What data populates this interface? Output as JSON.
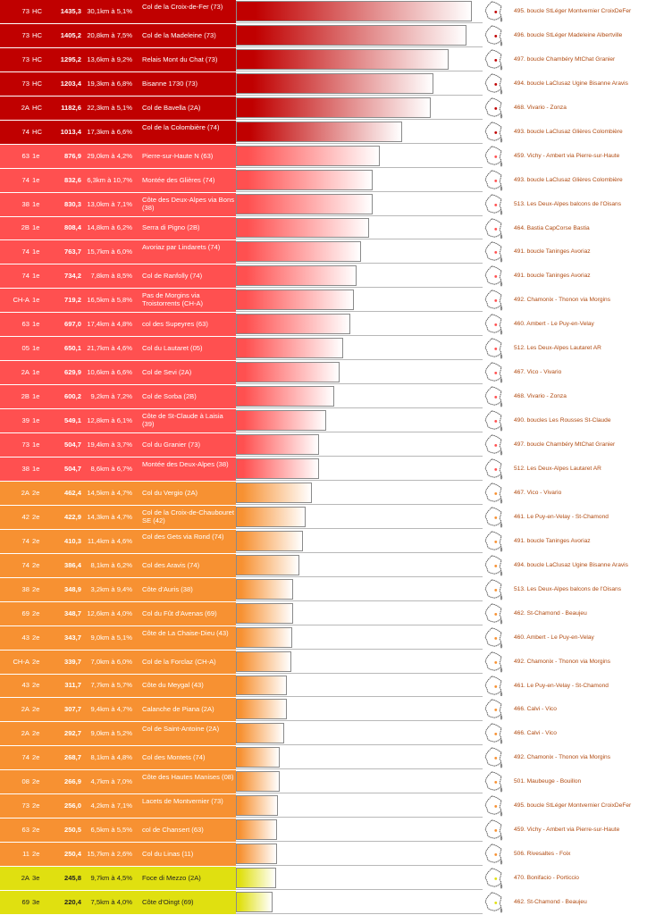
{
  "chart_data": {
    "type": "bar",
    "colors": {
      "HC": "#c00000",
      "1e": "#ff5050",
      "2e": "#f79132",
      "3e": "#e0e010"
    },
    "rows": [
      {
        "dept": "73",
        "cat": "HC",
        "score": 1435.3,
        "score_text": "1435,3",
        "dist": "30,1km",
        "grade": "5,1%",
        "climb": "Col de la Croix-de-Fer (73)",
        "route": "495. boucle StLéger Montvernier CroixDeFer"
      },
      {
        "dept": "73",
        "cat": "HC",
        "score": 1405.2,
        "score_text": "1405,2",
        "dist": "20,8km",
        "grade": "7,5%",
        "climb": "Col de la Madeleine (73)",
        "route": "496. boucle StLéger Madeleine Albertville"
      },
      {
        "dept": "73",
        "cat": "HC",
        "score": 1295.2,
        "score_text": "1295,2",
        "dist": "13,6km",
        "grade": "9,2%",
        "climb": "Relais Mont du Chat (73)",
        "route": "497. boucle Chambéry MtChat Granier"
      },
      {
        "dept": "73",
        "cat": "HC",
        "score": 1203.4,
        "score_text": "1203,4",
        "dist": "19,3km",
        "grade": "6,8%",
        "climb": "Bisanne 1730 (73)",
        "route": "494. boucle LaClusaz Ugine Bisanne Aravis"
      },
      {
        "dept": "2A",
        "cat": "HC",
        "score": 1182.6,
        "score_text": "1182,6",
        "dist": "22,3km",
        "grade": "5,1%",
        "climb": "Col de Bavella (2A)",
        "route": "468. Vivario - Zonza"
      },
      {
        "dept": "74",
        "cat": "HC",
        "score": 1013.4,
        "score_text": "1013,4",
        "dist": "17,3km",
        "grade": "6,6%",
        "climb": "Col de la Colombière (74)",
        "route": "493. boucle LaClusaz Glières Colombière"
      },
      {
        "dept": "63",
        "cat": "1e",
        "score": 876.9,
        "score_text": "876,9",
        "dist": "29,0km",
        "grade": "4,2%",
        "climb": "Pierre-sur-Haute N (63)",
        "route": "459. Vichy - Ambert via Pierre-sur-Haute"
      },
      {
        "dept": "74",
        "cat": "1e",
        "score": 832.6,
        "score_text": "832,6",
        "dist": "6,3km",
        "grade": "10,7%",
        "climb": "Montée des Glières (74)",
        "route": "493. boucle LaClusaz Glières Colombière"
      },
      {
        "dept": "38",
        "cat": "1e",
        "score": 830.3,
        "score_text": "830,3",
        "dist": "13,0km",
        "grade": "7,1%",
        "climb": "Côte des Deux-Alpes via Bons (38)",
        "route": "513. Les Deux-Alpes balcons de l'Oisans"
      },
      {
        "dept": "2B",
        "cat": "1e",
        "score": 808.4,
        "score_text": "808,4",
        "dist": "14,8km",
        "grade": "6,2%",
        "climb": "Serra di Pigno (2B)",
        "route": "464. Bastia CapCorse Bastia"
      },
      {
        "dept": "74",
        "cat": "1e",
        "score": 763.7,
        "score_text": "763,7",
        "dist": "15,7km",
        "grade": "6,0%",
        "climb": "Avoriaz par Lindarets (74)",
        "route": "491. boucle Taninges Avoriaz"
      },
      {
        "dept": "74",
        "cat": "1e",
        "score": 734.2,
        "score_text": "734,2",
        "dist": "7,8km",
        "grade": "8,5%",
        "climb": "Col de Ranfolly (74)",
        "route": "491. boucle Taninges Avoriaz"
      },
      {
        "dept": "CH-A",
        "cat": "1e",
        "score": 719.2,
        "score_text": "719,2",
        "dist": "16,5km",
        "grade": "5,8%",
        "climb": "Pas de Morgins via Troistorrents (CH-A)",
        "route": "492. Chamonix - Thonon via Morgins"
      },
      {
        "dept": "63",
        "cat": "1e",
        "score": 697.0,
        "score_text": "697,0",
        "dist": "17,4km",
        "grade": "4,8%",
        "climb": "col des Supeyres (63)",
        "route": "460. Ambert - Le Puy-en-Velay"
      },
      {
        "dept": "05",
        "cat": "1e",
        "score": 650.1,
        "score_text": "650,1",
        "dist": "21,7km",
        "grade": "4,6%",
        "climb": "Col du Lautaret (05)",
        "route": "512. Les Deux-Alpes Lautaret AR"
      },
      {
        "dept": "2A",
        "cat": "1e",
        "score": 629.9,
        "score_text": "629,9",
        "dist": "10,6km",
        "grade": "6,6%",
        "climb": "Col de Sevi (2A)",
        "route": "467. Vico - Vivario"
      },
      {
        "dept": "2B",
        "cat": "1e",
        "score": 600.2,
        "score_text": "600,2",
        "dist": "9,2km",
        "grade": "7,2%",
        "climb": "Col de Sorba (2B)",
        "route": "468. Vivario - Zonza"
      },
      {
        "dept": "39",
        "cat": "1e",
        "score": 549.1,
        "score_text": "549,1",
        "dist": "12,8km",
        "grade": "6,1%",
        "climb": "Côte de St-Claude à Laisia (39)",
        "route": "490. boucles Les Rousses St-Claude"
      },
      {
        "dept": "73",
        "cat": "1e",
        "score": 504.7,
        "score_text": "504,7",
        "dist": "19,4km",
        "grade": "3,7%",
        "climb": "Col du Granier (73)",
        "route": "497. boucle Chambéry MtChat Granier"
      },
      {
        "dept": "38",
        "cat": "1e",
        "score": 504.7,
        "score_text": "504,7",
        "dist": "8,6km",
        "grade": "6,7%",
        "climb": "Montée des Deux-Alpes (38)",
        "route": "512. Les Deux-Alpes Lautaret AR"
      },
      {
        "dept": "2A",
        "cat": "2e",
        "score": 462.4,
        "score_text": "462,4",
        "dist": "14,5km",
        "grade": "4,7%",
        "climb": "Col du Vergio (2A)",
        "route": "467. Vico - Vivario"
      },
      {
        "dept": "42",
        "cat": "2e",
        "score": 422.9,
        "score_text": "422,9",
        "dist": "14,3km",
        "grade": "4,7%",
        "climb": "Col de la Croix-de-Chaubouret SE (42)",
        "route": "461. Le Puy-en-Velay - St-Chamond"
      },
      {
        "dept": "74",
        "cat": "2e",
        "score": 410.3,
        "score_text": "410,3",
        "dist": "11,4km",
        "grade": "4,6%",
        "climb": "Col des Gets via Rond (74)",
        "route": "491. boucle Taninges Avoriaz"
      },
      {
        "dept": "74",
        "cat": "2e",
        "score": 386.4,
        "score_text": "386,4",
        "dist": "8,1km",
        "grade": "6,2%",
        "climb": "Col des Aravis (74)",
        "route": "494. boucle LaClusaz Ugine Bisanne Aravis"
      },
      {
        "dept": "38",
        "cat": "2e",
        "score": 348.9,
        "score_text": "348,9",
        "dist": "3,2km",
        "grade": "9,4%",
        "climb": "Côte d'Auris (38)",
        "route": "513. Les Deux-Alpes balcons de l'Oisans"
      },
      {
        "dept": "69",
        "cat": "2e",
        "score": 348.7,
        "score_text": "348,7",
        "dist": "12,6km",
        "grade": "4,0%",
        "climb": "Col du Fût d'Avenas (69)",
        "route": "462. St-Chamond - Beaujeu"
      },
      {
        "dept": "43",
        "cat": "2e",
        "score": 343.7,
        "score_text": "343,7",
        "dist": "9,0km",
        "grade": "5,1%",
        "climb": "Côte de La Chaise-Dieu (43)",
        "route": "460. Ambert - Le Puy-en-Velay"
      },
      {
        "dept": "CH-A",
        "cat": "2e",
        "score": 339.7,
        "score_text": "339,7",
        "dist": "7,0km",
        "grade": "6,0%",
        "climb": "Col de la Forclaz (CH-A)",
        "route": "492. Chamonix - Thonon via Morgins"
      },
      {
        "dept": "43",
        "cat": "2e",
        "score": 311.7,
        "score_text": "311,7",
        "dist": "7,7km",
        "grade": "5,7%",
        "climb": "Côte du Meygal (43)",
        "route": "461. Le Puy-en-Velay - St-Chamond"
      },
      {
        "dept": "2A",
        "cat": "2e",
        "score": 307.7,
        "score_text": "307,7",
        "dist": "9,4km",
        "grade": "4,7%",
        "climb": "Calanche de Piana (2A)",
        "route": "466. Calvi - Vico"
      },
      {
        "dept": "2A",
        "cat": "2e",
        "score": 292.7,
        "score_text": "292,7",
        "dist": "9,0km",
        "grade": "5,2%",
        "climb": "Col de Saint-Antoine (2A)",
        "route": "466. Calvi - Vico"
      },
      {
        "dept": "74",
        "cat": "2e",
        "score": 268.7,
        "score_text": "268,7",
        "dist": "8,1km",
        "grade": "4,8%",
        "climb": "Col des Montets (74)",
        "route": "492. Chamonix - Thonon via Morgins"
      },
      {
        "dept": "08",
        "cat": "2e",
        "score": 266.9,
        "score_text": "266,9",
        "dist": "4,7km",
        "grade": "7,0%",
        "climb": "Côte des Hautes Manises (08)",
        "route": "501. Maubeuge - Bouillon"
      },
      {
        "dept": "73",
        "cat": "2e",
        "score": 256.0,
        "score_text": "256,0",
        "dist": "4,2km",
        "grade": "7,1%",
        "climb": "Lacets de Montvernier (73)",
        "route": "495. boucle StLéger Montvernier CroixDeFer"
      },
      {
        "dept": "63",
        "cat": "2e",
        "score": 250.5,
        "score_text": "250,5",
        "dist": "6,5km",
        "grade": "5,5%",
        "climb": "col de Chansert (63)",
        "route": "459. Vichy - Ambert via Pierre-sur-Haute"
      },
      {
        "dept": "11",
        "cat": "2e",
        "score": 250.4,
        "score_text": "250,4",
        "dist": "15,7km",
        "grade": "2,6%",
        "climb": "Col du Linas (11)",
        "route": "506. Rivesaltes - Foix"
      },
      {
        "dept": "2A",
        "cat": "3e",
        "score": 245.8,
        "score_text": "245,8",
        "dist": "9,7km",
        "grade": "4,5%",
        "climb": "Foce di Mezzo (2A)",
        "route": "470. Bonifacio - Porticcio"
      },
      {
        "dept": "69",
        "cat": "3e",
        "score": 220.4,
        "score_text": "220,4",
        "dist": "7,5km",
        "grade": "4,0%",
        "climb": "Côte d'Oingt (69)",
        "route": "462. St-Chamond - Beaujeu"
      }
    ]
  }
}
